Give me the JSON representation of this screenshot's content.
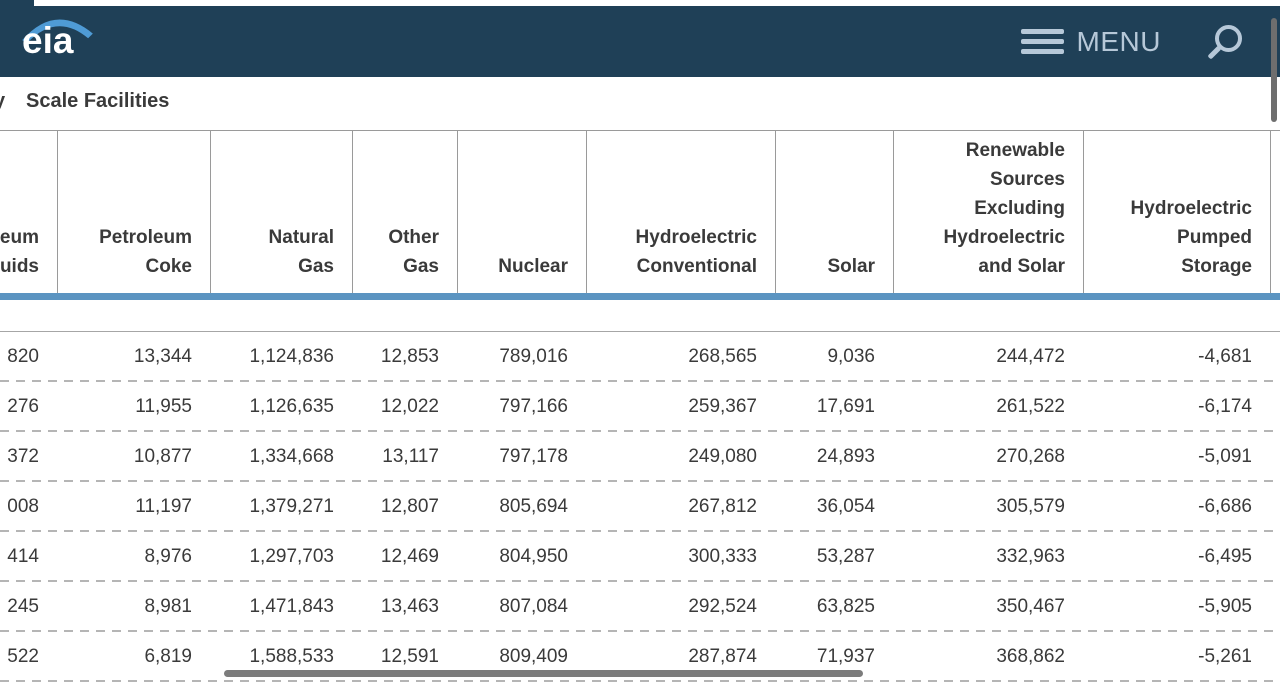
{
  "header": {
    "logo_text": "eia",
    "menu_label": "MENU"
  },
  "page": {
    "title_cut": "y",
    "title": "Scale Facilities"
  },
  "table": {
    "columns": [
      {
        "label_lines": [
          "eum",
          "uids"
        ],
        "truncated": true
      },
      {
        "label_lines": [
          "Petroleum",
          "Coke"
        ]
      },
      {
        "label_lines": [
          "Natural",
          "Gas"
        ]
      },
      {
        "label_lines": [
          "Other",
          "Gas"
        ]
      },
      {
        "label_lines": [
          "Nuclear"
        ]
      },
      {
        "label_lines": [
          "Hydroelectric",
          "Conventional"
        ]
      },
      {
        "label_lines": [
          "Solar"
        ]
      },
      {
        "label_lines": [
          "Renewable",
          "Sources",
          "Excluding",
          "Hydroelectric",
          "and Solar"
        ]
      },
      {
        "label_lines": [
          "Hydroelectric",
          "Pumped",
          "Storage"
        ]
      }
    ],
    "rows": [
      [
        "820",
        "13,344",
        "1,124,836",
        "12,853",
        "789,016",
        "268,565",
        "9,036",
        "244,472",
        "-4,681"
      ],
      [
        "276",
        "11,955",
        "1,126,635",
        "12,022",
        "797,166",
        "259,367",
        "17,691",
        "261,522",
        "-6,174"
      ],
      [
        "372",
        "10,877",
        "1,334,668",
        "13,117",
        "797,178",
        "249,080",
        "24,893",
        "270,268",
        "-5,091"
      ],
      [
        "008",
        "11,197",
        "1,379,271",
        "12,807",
        "805,694",
        "267,812",
        "36,054",
        "305,579",
        "-6,686"
      ],
      [
        "414",
        "8,976",
        "1,297,703",
        "12,469",
        "804,950",
        "300,333",
        "53,287",
        "332,963",
        "-6,495"
      ],
      [
        "245",
        "8,981",
        "1,471,843",
        "13,463",
        "807,084",
        "292,524",
        "63,825",
        "350,467",
        "-5,905"
      ],
      [
        "522",
        "6,819",
        "1,588,533",
        "12,591",
        "809,409",
        "287,874",
        "71,937",
        "368,862",
        "-5,261"
      ]
    ]
  },
  "colors": {
    "header_bg": "#1f4057",
    "accent_bar": "#5b94c1",
    "logo_swoosh": "#4f9bd5",
    "menu_fg": "#b6c8d8",
    "text": "#3a3a3a"
  }
}
